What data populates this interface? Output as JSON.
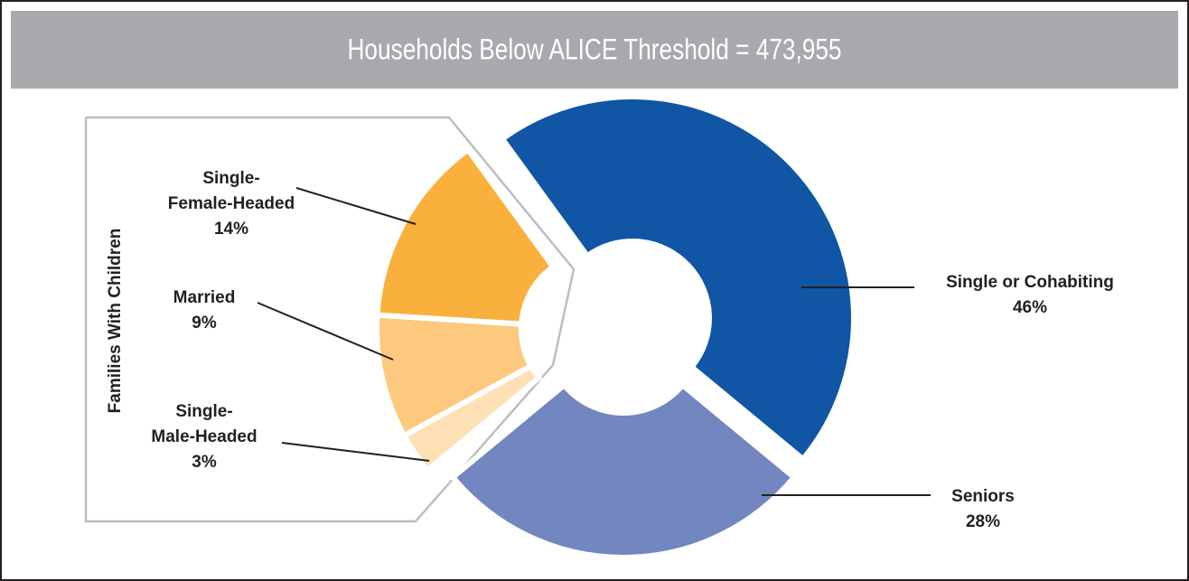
{
  "chart_data": {
    "type": "donut",
    "title": "Households Below ALICE Threshold = 473,955",
    "group_label": "Families With Children",
    "categories": [
      [
        "Single or Cohabiting"
      ],
      [
        "Seniors"
      ],
      [
        "Single-",
        "Male-Headed"
      ],
      [
        "Married"
      ],
      [
        "Single-",
        "Female-Headed"
      ]
    ],
    "values": [
      46,
      28,
      3,
      9,
      14
    ],
    "value_labels": [
      "46%",
      "28%",
      "3%",
      "9%",
      "14%"
    ],
    "colors": [
      "#1155a5",
      "#7286c0",
      "#fde0b3",
      "#fdc97e",
      "#f9b03c"
    ]
  }
}
